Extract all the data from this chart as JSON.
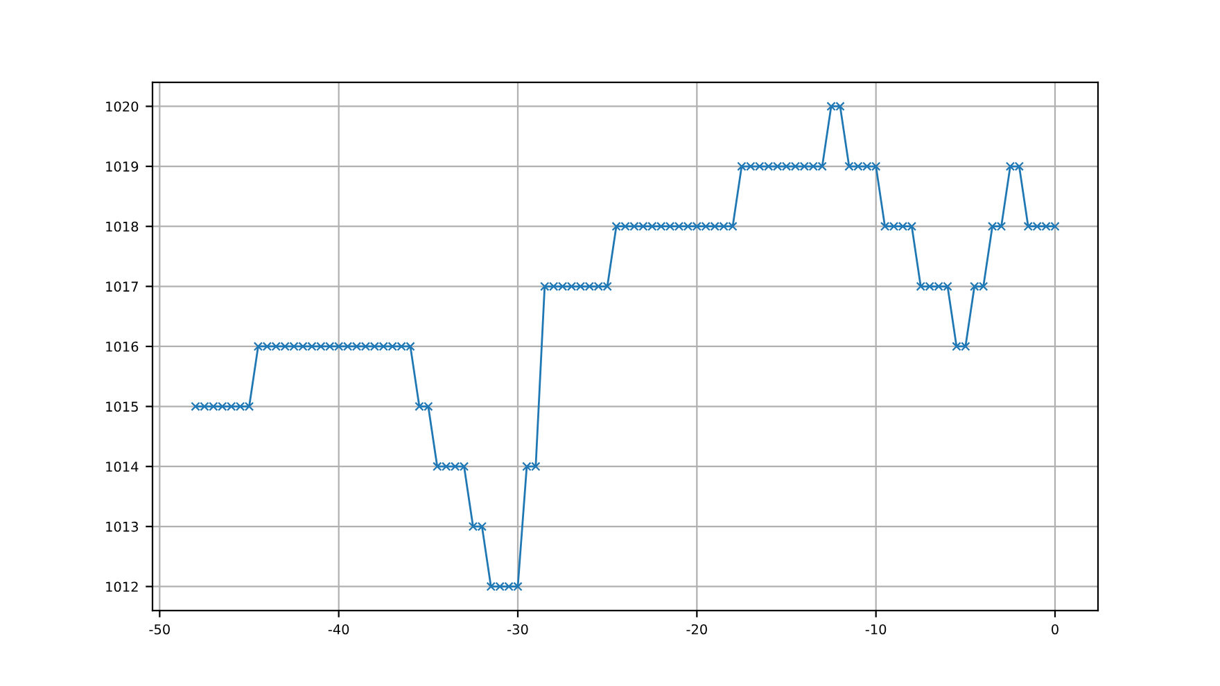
{
  "chart_data": {
    "type": "line",
    "marker": "cross",
    "line_style": "solid",
    "grid": true,
    "x": [
      -48,
      -47.5,
      -47,
      -46.5,
      -46,
      -45.5,
      -45,
      -44.5,
      -44,
      -43.5,
      -43,
      -42.5,
      -42,
      -41.5,
      -41,
      -40.5,
      -40,
      -39.5,
      -39,
      -38.5,
      -38,
      -37.5,
      -37,
      -36.5,
      -36,
      -35.5,
      -35,
      -34.5,
      -34,
      -33.5,
      -33,
      -32.5,
      -32,
      -31.5,
      -31,
      -30.5,
      -30,
      -29.5,
      -29,
      -28.5,
      -28,
      -27.5,
      -27,
      -26.5,
      -26,
      -25.5,
      -25,
      -24.5,
      -24,
      -23.5,
      -23,
      -22.5,
      -22,
      -21.5,
      -21,
      -20.5,
      -20,
      -19.5,
      -19,
      -18.5,
      -18,
      -17.5,
      -17,
      -16.5,
      -16,
      -15.5,
      -15,
      -14.5,
      -14,
      -13.5,
      -13,
      -12.5,
      -12,
      -11.5,
      -11,
      -10.5,
      -10,
      -9.5,
      -9,
      -8.5,
      -8,
      -7.5,
      -7,
      -6.5,
      -6,
      -5.5,
      -5,
      -4.5,
      -4,
      -3.5,
      -3,
      -2.5,
      -2,
      -1.5,
      -1,
      -0.5,
      0
    ],
    "series": [
      {
        "color": "#1f77b4",
        "values": [
          1015,
          1015,
          1015,
          1015,
          1015,
          1015,
          1015,
          1016,
          1016,
          1016,
          1016,
          1016,
          1016,
          1016,
          1016,
          1016,
          1016,
          1016,
          1016,
          1016,
          1016,
          1016,
          1016,
          1016,
          1016,
          1015,
          1015,
          1014,
          1014,
          1014,
          1014,
          1013,
          1013,
          1012,
          1012,
          1012,
          1012,
          1014,
          1014,
          1017,
          1017,
          1017,
          1017,
          1017,
          1017,
          1017,
          1017,
          1018,
          1018,
          1018,
          1018,
          1018,
          1018,
          1018,
          1018,
          1018,
          1018,
          1018,
          1018,
          1018,
          1018,
          1019,
          1019,
          1019,
          1019,
          1019,
          1019,
          1019,
          1019,
          1019,
          1019,
          1020,
          1020,
          1019,
          1019,
          1019,
          1019,
          1018,
          1018,
          1018,
          1018,
          1017,
          1017,
          1017,
          1017,
          1016,
          1016,
          1017,
          1017,
          1018,
          1018,
          1019,
          1019,
          1018,
          1018,
          1018,
          1018
        ]
      }
    ],
    "xlim": [
      -50.4,
      2.4
    ],
    "xticks": [
      -50,
      -40,
      -30,
      -20,
      -10,
      0
    ],
    "ylim": [
      1011.6,
      1020.4
    ],
    "yticks": [
      1012,
      1013,
      1014,
      1015,
      1016,
      1017,
      1018,
      1019,
      1020
    ]
  }
}
